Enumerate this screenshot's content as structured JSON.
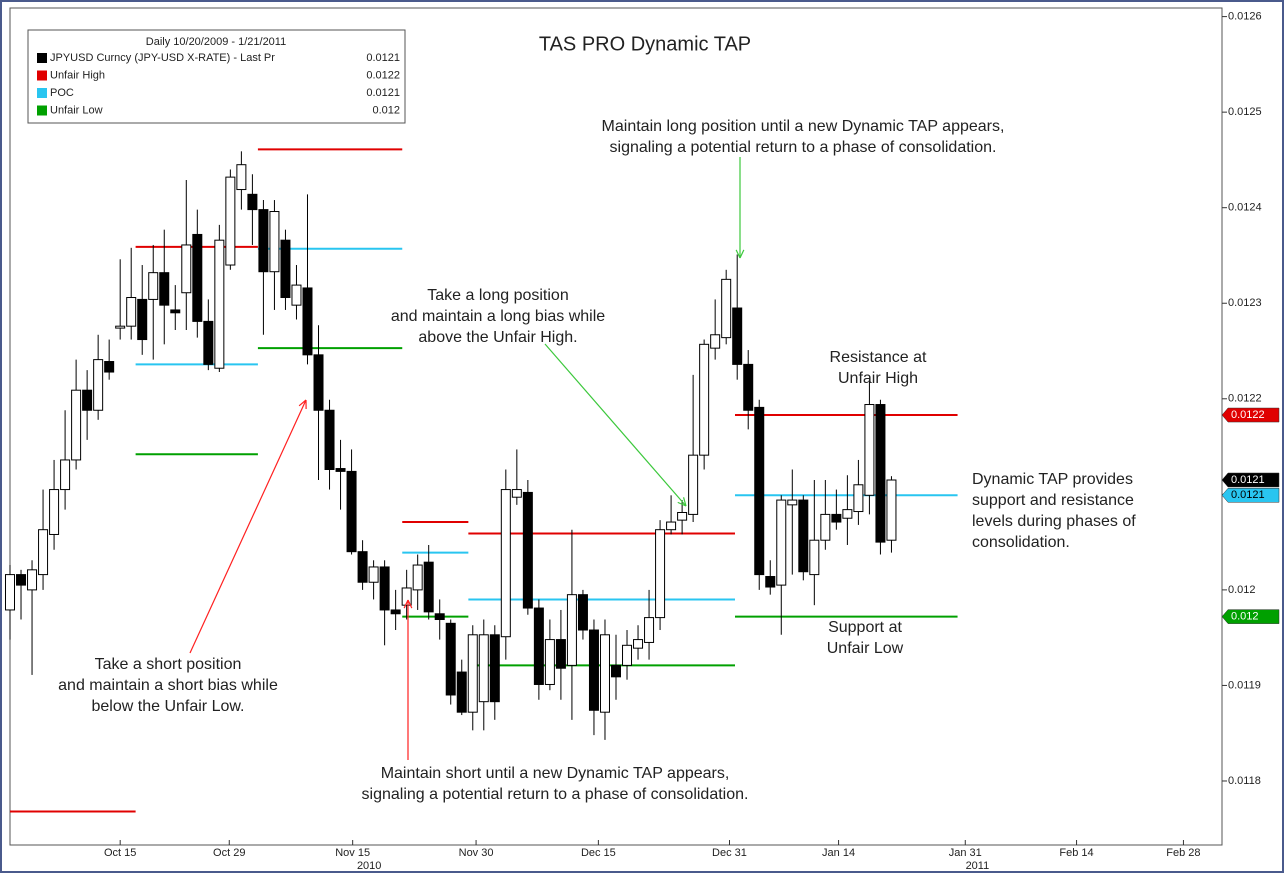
{
  "chart_data": {
    "type": "candlestick",
    "title": "TAS PRO Dynamic TAP",
    "legend": {
      "header": "Daily 10/20/2009 - 1/21/2011",
      "entries": [
        {
          "name": "JPYUSD Curncy (JPY-USD X-RATE) - Last Pr",
          "color": "#000000",
          "last": 0.0121
        },
        {
          "name": "Unfair High",
          "color": "#e00000",
          "last": 0.0122,
          "segments": [
            {
              "x": [
                0,
                11.4
              ],
              "value": 0.011768
            },
            {
              "x": [
                11.4,
                22.5
              ],
              "value": 0.012359
            },
            {
              "x": [
                22.5,
                35.6
              ],
              "value": 0.012461
            },
            {
              "x": [
                35.6,
                41.6
              ],
              "value": 0.012071
            },
            {
              "x": [
                41.6,
                65.8
              ],
              "value": 0.012059
            },
            {
              "x": [
                65.8,
                86
              ],
              "value": 0.012183
            }
          ]
        },
        {
          "name": "POC",
          "color": "#29c5f0",
          "last": 0.0121,
          "segments": [
            {
              "x": [
                11.4,
                22.5
              ],
              "value": 0.012236
            },
            {
              "x": [
                22.5,
                35.6
              ],
              "value": 0.012357
            },
            {
              "x": [
                35.6,
                41.6
              ],
              "value": 0.012039
            },
            {
              "x": [
                41.6,
                65.8
              ],
              "value": 0.01199
            },
            {
              "x": [
                65.8,
                86
              ],
              "value": 0.012099
            }
          ]
        },
        {
          "name": "Unfair Low",
          "color": "#00a000",
          "last": 0.012,
          "segments": [
            {
              "x": [
                11.4,
                22.5
              ],
              "value": 0.012142
            },
            {
              "x": [
                22.5,
                35.6
              ],
              "value": 0.012253
            },
            {
              "x": [
                35.6,
                41.6
              ],
              "value": 0.011972
            },
            {
              "x": [
                41.6,
                65.8
              ],
              "value": 0.011921
            },
            {
              "x": [
                65.8,
                86
              ],
              "value": 0.011972
            }
          ]
        }
      ]
    },
    "up_color": "#ffffff",
    "down_color": "#000000",
    "x": [
      0,
      1,
      2,
      3,
      4,
      5,
      6,
      7,
      8,
      9,
      10,
      11,
      12,
      13,
      14,
      15,
      16,
      17,
      18,
      19,
      20,
      21,
      22,
      23,
      24,
      25,
      26,
      27,
      28,
      29,
      30,
      31,
      32,
      33,
      34,
      35,
      36,
      37,
      38,
      39,
      40,
      41,
      42,
      43,
      44,
      45,
      46,
      47,
      48,
      49,
      50,
      51,
      52,
      53,
      54,
      55,
      56,
      57,
      58,
      59,
      60,
      61,
      62,
      63,
      64,
      65,
      66,
      67,
      68,
      69,
      70,
      71,
      72,
      73,
      74,
      75,
      76,
      77,
      78,
      79,
      80
    ],
    "open": [
      0.011979,
      0.012016,
      0.012,
      0.012016,
      0.012058,
      0.012105,
      0.012136,
      0.012209,
      0.012188,
      0.012239,
      0.012274,
      0.012276,
      0.012304,
      0.012304,
      0.012332,
      0.012293,
      0.012311,
      0.012372,
      0.012281,
      0.012232,
      0.01234,
      0.012419,
      0.012414,
      0.012398,
      0.012333,
      0.012366,
      0.012298,
      0.012316,
      0.012246,
      0.012188,
      0.012127,
      0.012124,
      0.01204,
      0.012008,
      0.012024,
      0.011979,
      0.011984,
      0.012,
      0.012029,
      0.011975,
      0.011965,
      0.011914,
      0.011872,
      0.011883,
      0.011953,
      0.011951,
      0.012097,
      0.012102,
      0.011981,
      0.011901,
      0.011948,
      0.011921,
      0.011995,
      0.011958,
      0.011872,
      0.011921,
      0.011921,
      0.011939,
      0.011945,
      0.011971,
      0.012063,
      0.012073,
      0.012079,
      0.012141,
      0.012253,
      0.012264,
      0.012295,
      0.012236,
      0.012191,
      0.012014,
      0.012005,
      0.012089,
      0.012094,
      0.012016,
      0.012052,
      0.012079,
      0.012075,
      0.012082,
      0.012099,
      0.012194,
      0.012052
    ],
    "high": [
      0.012026,
      0.012021,
      0.012031,
      0.012105,
      0.012136,
      0.012188,
      0.012241,
      0.01223,
      0.012267,
      0.012262,
      0.012346,
      0.012358,
      0.01234,
      0.012361,
      0.012377,
      0.012319,
      0.012429,
      0.012398,
      0.012304,
      0.012382,
      0.01244,
      0.012459,
      0.012435,
      0.012408,
      0.012408,
      0.012377,
      0.01234,
      0.012414,
      0.012277,
      0.012199,
      0.012157,
      0.012147,
      0.012052,
      0.012031,
      0.012031,
      0.012,
      0.012021,
      0.012037,
      0.012047,
      0.01199,
      0.011969,
      0.011927,
      0.011963,
      0.011969,
      0.011963,
      0.012126,
      0.012147,
      0.012115,
      0.01199,
      0.011969,
      0.011979,
      0.012063,
      0.012,
      0.011969,
      0.011969,
      0.011953,
      0.011958,
      0.011963,
      0.012,
      0.012073,
      0.012099,
      0.012094,
      0.012225,
      0.012262,
      0.012304,
      0.012335,
      0.012351,
      0.012251,
      0.012199,
      0.012031,
      0.012099,
      0.012126,
      0.012099,
      0.012115,
      0.012115,
      0.012105,
      0.01212,
      0.012136,
      0.01222,
      0.012199,
      0.012119
    ],
    "low": [
      0.011948,
      0.011969,
      0.011911,
      0.012,
      0.012042,
      0.012084,
      0.012126,
      0.012157,
      0.012178,
      0.01222,
      0.012262,
      0.012262,
      0.012246,
      0.012241,
      0.012257,
      0.012272,
      0.012272,
      0.012264,
      0.01223,
      0.012228,
      0.012335,
      0.012398,
      0.012361,
      0.012267,
      0.012293,
      0.012293,
      0.012283,
      0.012236,
      0.012115,
      0.012105,
      0.012084,
      0.012037,
      0.012,
      0.01199,
      0.011942,
      0.011958,
      0.011969,
      0.011979,
      0.011969,
      0.011948,
      0.01188,
      0.011869,
      0.011853,
      0.011853,
      0.011864,
      0.011927,
      0.012089,
      0.011974,
      0.011885,
      0.011895,
      0.011885,
      0.011864,
      0.011948,
      0.011848,
      0.011843,
      0.011885,
      0.011906,
      0.011927,
      0.011927,
      0.011958,
      0.012058,
      0.012058,
      0.012071,
      0.012126,
      0.012241,
      0.012257,
      0.01222,
      0.012168,
      0.012,
      0.011995,
      0.011953,
      0.012016,
      0.01201,
      0.011984,
      0.012042,
      0.012063,
      0.012047,
      0.012068,
      0.012079,
      0.012037,
      0.012039
    ],
    "close": [
      0.012016,
      0.012005,
      0.012021,
      0.012063,
      0.012105,
      0.012136,
      0.012209,
      0.012188,
      0.012241,
      0.012228,
      0.012276,
      0.012306,
      0.012262,
      0.012332,
      0.012298,
      0.01229,
      0.012361,
      0.012281,
      0.012236,
      0.012366,
      0.012432,
      0.012445,
      0.012398,
      0.012333,
      0.012396,
      0.012306,
      0.012319,
      0.012246,
      0.012188,
      0.012126,
      0.012124,
      0.01204,
      0.012008,
      0.012024,
      0.011979,
      0.011975,
      0.012002,
      0.012026,
      0.011977,
      0.011969,
      0.01189,
      0.011872,
      0.011953,
      0.011953,
      0.011883,
      0.012105,
      0.012105,
      0.011981,
      0.011901,
      0.011948,
      0.011918,
      0.011995,
      0.011958,
      0.011874,
      0.011953,
      0.011909,
      0.011942,
      0.011948,
      0.011971,
      0.012063,
      0.012071,
      0.012081,
      0.012141,
      0.012257,
      0.012267,
      0.012325,
      0.012236,
      0.012188,
      0.012016,
      0.012003,
      0.012094,
      0.012094,
      0.012019,
      0.012052,
      0.012079,
      0.012071,
      0.012084,
      0.01211,
      0.012194,
      0.01205,
      0.012115
    ],
    "xlim": [
      0,
      110
    ],
    "ylim": [
      0.011733,
      0.012609
    ],
    "yticks": [
      0.0118,
      0.0119,
      0.012,
      0.0121,
      0.0122,
      0.0123,
      0.0124,
      0.0125,
      0.0126
    ],
    "xticks": [
      {
        "value": 10,
        "label": "Oct 15"
      },
      {
        "value": 19.9,
        "label": "Oct 29"
      },
      {
        "value": 31.1,
        "label": "Nov 15"
      },
      {
        "value": 42.3,
        "label": "Nov 30"
      },
      {
        "value": 53.4,
        "label": "Dec 15"
      },
      {
        "value": 65.3,
        "label": "Dec 31"
      },
      {
        "value": 75.2,
        "label": "Jan 14"
      },
      {
        "value": 86.7,
        "label": "Jan 31"
      },
      {
        "value": 96.8,
        "label": "Feb 14"
      },
      {
        "value": 106.5,
        "label": "Feb 28"
      }
    ],
    "year_labels": [
      {
        "value": 32.6,
        "label": "2010"
      },
      {
        "value": 87.8,
        "label": "2011"
      }
    ],
    "annotations": [
      [
        "Take a short position",
        "and maintain a short bias while",
        "below the Unfair Low."
      ],
      [
        "Take a long position",
        "and maintain a long bias while",
        "above the Unfair High."
      ],
      [
        "Maintain long position until a new Dynamic TAP appears,",
        "signaling a potential return to a phase of consolidation."
      ],
      [
        "Maintain short until a new Dynamic TAP appears,",
        "signaling a potential return to a phase of consolidation."
      ],
      [
        "Resistance at",
        "Unfair High"
      ],
      [
        "Dynamic TAP provides",
        "support and resistance",
        "levels during phases of",
        "consolidation."
      ],
      [
        "Support at",
        "Unfair Low"
      ]
    ]
  }
}
